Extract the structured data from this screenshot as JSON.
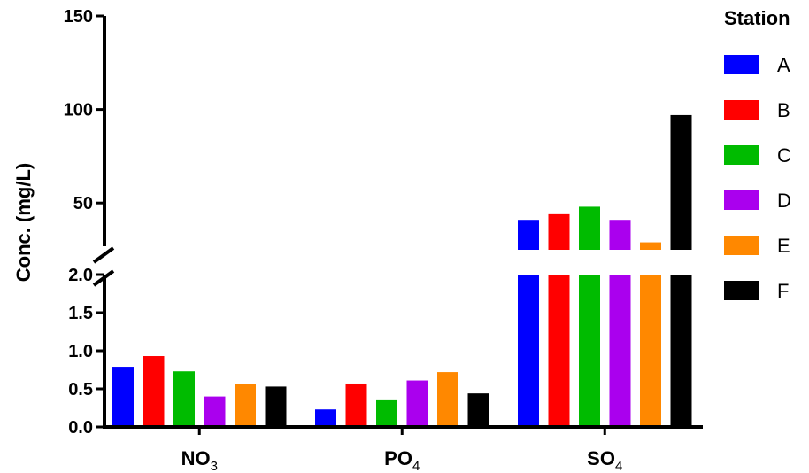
{
  "chart_data": {
    "type": "bar",
    "ylabel": "Conc. (mg/L)",
    "categories": [
      {
        "base": "NO",
        "sub": "3"
      },
      {
        "base": "PO",
        "sub": "4"
      },
      {
        "base": "SO",
        "sub": "4"
      }
    ],
    "legend_title": "Station",
    "legend_position": "right",
    "axis_break": true,
    "lower_axis": {
      "ylim": [
        0,
        2.0
      ],
      "ticks": [
        "0.0",
        "0.5",
        "1.0",
        "1.5",
        "2.0"
      ]
    },
    "upper_axis": {
      "ylim": [
        25,
        150
      ],
      "ticks": [
        "50",
        "100",
        "150"
      ]
    },
    "series": [
      {
        "name": "A",
        "color": "#0000ff",
        "values": [
          0.79,
          0.23,
          41
        ]
      },
      {
        "name": "B",
        "color": "#ff0000",
        "values": [
          0.93,
          0.57,
          44
        ]
      },
      {
        "name": "C",
        "color": "#00bb00",
        "values": [
          0.73,
          0.35,
          48
        ]
      },
      {
        "name": "D",
        "color": "#aa00ee",
        "values": [
          0.4,
          0.61,
          41
        ]
      },
      {
        "name": "E",
        "color": "#ff8800",
        "values": [
          0.56,
          0.72,
          29
        ]
      },
      {
        "name": "F",
        "color": "#000000",
        "values": [
          0.53,
          0.44,
          97
        ]
      }
    ]
  }
}
